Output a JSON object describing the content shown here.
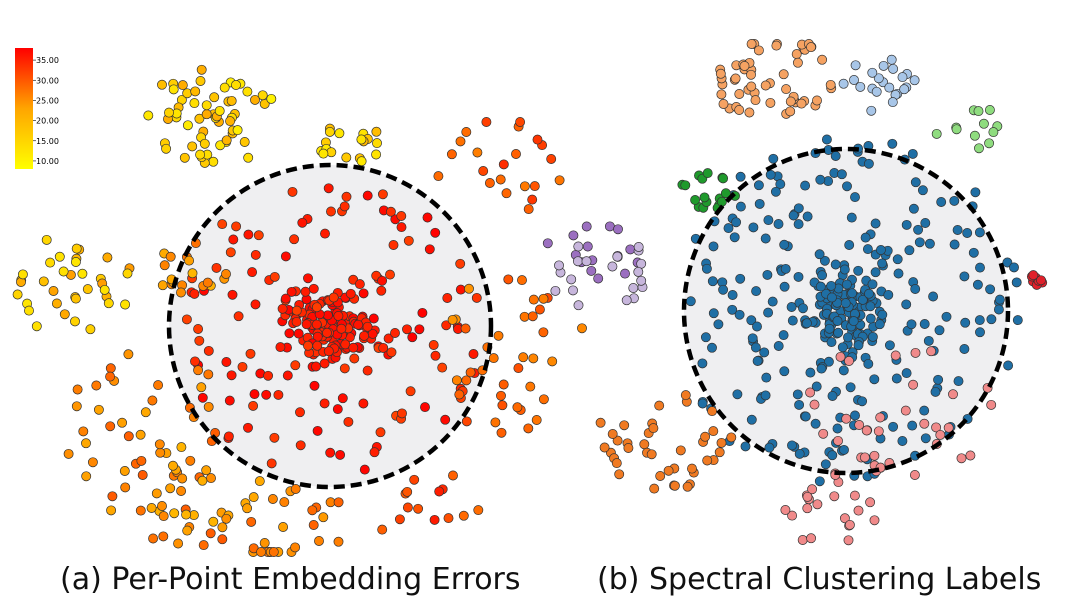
{
  "figure": {
    "caption_a": "(a) Per-Point Embedding Errors",
    "caption_b": "(b) Spectral Clustering Labels"
  },
  "chart_data": [
    {
      "type": "scatter",
      "title": "(a) Per-Point Embedding Errors",
      "xlabel": "",
      "ylabel": "",
      "colorbar": {
        "ticks": [
          "35.00",
          "30.00",
          "25.00",
          "20.00",
          "15.00",
          "10.00"
        ],
        "range": [
          8.0,
          38.0
        ],
        "colors": [
          "#ffff00",
          "#ffa500",
          "#ff0000"
        ],
        "placement": "top-left"
      },
      "highlight": "dashed circle around the dense central cluster",
      "clusters": [
        {
          "center": [
            0.0,
            0.0
          ],
          "radius": 0.25,
          "count": 130,
          "value_range": [
            34,
            38
          ],
          "shape": "dense-core"
        },
        {
          "center": [
            0.0,
            0.0
          ],
          "radius": 0.95,
          "count": 140,
          "value_range": [
            32,
            38
          ],
          "shape": "disk"
        },
        {
          "center": [
            -0.75,
            1.3
          ],
          "radius": 0.38,
          "count": 60,
          "value_range": [
            10,
            22
          ],
          "shape": "blob"
        },
        {
          "center": [
            0.12,
            1.15
          ],
          "radius": 0.2,
          "count": 18,
          "value_range": [
            10,
            20
          ],
          "shape": "blob"
        },
        {
          "center": [
            -1.6,
            0.25
          ],
          "radius": 0.4,
          "count": 35,
          "value_range": [
            12,
            24
          ],
          "shape": "blob"
        },
        {
          "center": [
            -0.85,
            0.35
          ],
          "radius": 0.22,
          "count": 18,
          "value_range": [
            20,
            28
          ],
          "shape": "blob"
        },
        {
          "center": [
            -1.2,
            -0.6
          ],
          "radius": 0.55,
          "count": 35,
          "value_range": [
            22,
            30
          ],
          "shape": "blob"
        },
        {
          "center": [
            -0.9,
            -1.05
          ],
          "radius": 0.45,
          "count": 40,
          "value_range": [
            20,
            30
          ],
          "shape": "blob"
        },
        {
          "center": [
            -0.3,
            -1.25
          ],
          "radius": 0.4,
          "count": 28,
          "value_range": [
            22,
            30
          ],
          "shape": "blob"
        },
        {
          "center": [
            1.05,
            1.0
          ],
          "radius": 0.4,
          "count": 22,
          "value_range": [
            26,
            34
          ],
          "shape": "blob"
        },
        {
          "center": [
            1.15,
            0.0
          ],
          "radius": 0.4,
          "count": 20,
          "value_range": [
            24,
            32
          ],
          "shape": "blob"
        },
        {
          "center": [
            1.05,
            -0.45
          ],
          "radius": 0.35,
          "count": 18,
          "value_range": [
            24,
            32
          ],
          "shape": "blob"
        },
        {
          "center": [
            0.55,
            -1.15
          ],
          "radius": 0.35,
          "count": 14,
          "value_range": [
            28,
            36
          ],
          "shape": "blob"
        }
      ]
    },
    {
      "type": "scatter",
      "title": "(b) Spectral Clustering Labels",
      "xlabel": "",
      "ylabel": "",
      "highlight": "dashed circle around the central blue cluster",
      "clusters": [
        {
          "label": "blue",
          "color": "#1f6fa5",
          "center": [
            0.0,
            0.0
          ],
          "radius": 0.25,
          "count": 120,
          "shape": "dense-core"
        },
        {
          "label": "blue",
          "color": "#1f6fa5",
          "center": [
            0.0,
            0.0
          ],
          "radius": 1.1,
          "count": 230,
          "shape": "disk"
        },
        {
          "label": "light-orange",
          "color": "#f5a262",
          "center": [
            -0.45,
            1.45
          ],
          "radius": 0.35,
          "count": 55,
          "shape": "blob"
        },
        {
          "label": "light-blue",
          "color": "#a8c6e8",
          "center": [
            0.2,
            1.42
          ],
          "radius": 0.22,
          "count": 22,
          "shape": "blob"
        },
        {
          "label": "light-green",
          "color": "#8fdc7f",
          "center": [
            0.75,
            1.15
          ],
          "radius": 0.22,
          "count": 12,
          "shape": "blob"
        },
        {
          "label": "dark-green",
          "color": "#1f9a2c",
          "center": [
            -0.85,
            0.75
          ],
          "radius": 0.18,
          "count": 18,
          "shape": "blob"
        },
        {
          "label": "purple",
          "color": "#9b6fc0",
          "center": [
            -1.6,
            0.35
          ],
          "radius": 0.28,
          "count": 16,
          "shape": "blob"
        },
        {
          "label": "lavender",
          "color": "#c7b6dc",
          "center": [
            -1.5,
            0.2
          ],
          "radius": 0.32,
          "count": 20,
          "shape": "blob"
        },
        {
          "label": "orange",
          "color": "#f07a22",
          "center": [
            -1.15,
            -0.8
          ],
          "radius": 0.4,
          "count": 40,
          "shape": "blob"
        },
        {
          "label": "pink",
          "color": "#f08a8a",
          "center": [
            0.35,
            -0.6
          ],
          "radius": 0.55,
          "count": 35,
          "shape": "blob"
        },
        {
          "label": "pink",
          "color": "#f08a8a",
          "center": [
            -0.1,
            -1.25
          ],
          "radius": 0.3,
          "count": 22,
          "shape": "blob"
        },
        {
          "label": "red",
          "color": "#e0202a",
          "center": [
            1.2,
            0.2
          ],
          "radius": 0.05,
          "count": 8,
          "shape": "blob"
        }
      ]
    }
  ]
}
